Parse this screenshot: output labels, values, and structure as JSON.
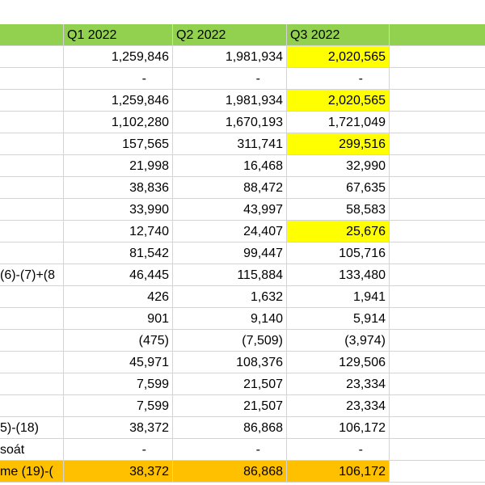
{
  "colors": {
    "header_fill": "#92d050",
    "highlight_yellow": "#ffff00",
    "total_row_fill": "#ffc000",
    "gridline": "#d4d4d4"
  },
  "header": {
    "label": "",
    "q1": "Q1 2022",
    "q2": "Q2 2022",
    "q3": "Q3 2022"
  },
  "rows": [
    {
      "label": "",
      "q1": "1,259,846",
      "q2": "1,981,934",
      "q3": "2,020,565",
      "hl": true
    },
    {
      "label": "",
      "q1": "-",
      "q2": "-",
      "q3": "-",
      "dash": true
    },
    {
      "label": "",
      "q1": "1,259,846",
      "q2": "1,981,934",
      "q3": "2,020,565",
      "hl": true
    },
    {
      "label": "",
      "q1": "1,102,280",
      "q2": "1,670,193",
      "q3": "1,721,049"
    },
    {
      "label": "",
      "q1": "157,565",
      "q2": "311,741",
      "q3": "299,516",
      "hl": true
    },
    {
      "label": "",
      "q1": "21,998",
      "q2": "16,468",
      "q3": "32,990"
    },
    {
      "label": "",
      "q1": "38,836",
      "q2": "88,472",
      "q3": "67,635"
    },
    {
      "label": "",
      "q1": "33,990",
      "q2": "43,997",
      "q3": "58,583"
    },
    {
      "label": "",
      "q1": "12,740",
      "q2": "24,407",
      "q3": "25,676",
      "hl": true
    },
    {
      "label": "",
      "q1": "81,542",
      "q2": "99,447",
      "q3": "105,716"
    },
    {
      "label": "(6)-(7)+(8",
      "q1": "46,445",
      "q2": "115,884",
      "q3": "133,480"
    },
    {
      "label": "",
      "q1": "426",
      "q2": "1,632",
      "q3": "1,941"
    },
    {
      "label": "",
      "q1": "901",
      "q2": "9,140",
      "q3": "5,914"
    },
    {
      "label": "",
      "q1": "(475)",
      "q2": "(7,509)",
      "q3": "(3,974)"
    },
    {
      "label": "",
      "q1": "45,971",
      "q2": "108,376",
      "q3": "129,506"
    },
    {
      "label": "",
      "q1": "7,599",
      "q2": "21,507",
      "q3": "23,334"
    },
    {
      "label": "",
      "q1": "7,599",
      "q2": "21,507",
      "q3": "23,334"
    },
    {
      "label": "5)-(18)",
      "q1": "38,372",
      "q2": "86,868",
      "q3": "106,172"
    },
    {
      "label": "soát",
      "q1": "-",
      "q2": "-",
      "q3": "-",
      "dash": true
    },
    {
      "label": "me (19)-(",
      "q1": "38,372",
      "q2": "86,868",
      "q3": "106,172",
      "total": true
    }
  ]
}
